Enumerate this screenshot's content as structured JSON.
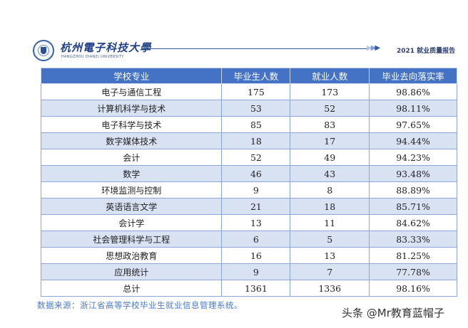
{
  "header": {
    "university_name": "杭州電子科技大學",
    "university_name_en": "HANGZHOU DIANZI UNIVERSITY",
    "logo_icon": "university-seal-icon",
    "chevron_icon": "triple-chevron-right-icon",
    "report_title": "2021 就业质量报告"
  },
  "table": {
    "columns": [
      "学校专业",
      "毕业生人数",
      "就业人数",
      "毕业去向落实率"
    ],
    "rows": [
      {
        "major": "电子与通信工程",
        "graduates": "175",
        "employed": "173",
        "rate": "98.86%"
      },
      {
        "major": "计算机科学与技术",
        "graduates": "53",
        "employed": "52",
        "rate": "98.11%"
      },
      {
        "major": "电子科学与技术",
        "graduates": "85",
        "employed": "83",
        "rate": "97.65%"
      },
      {
        "major": "数字媒体技术",
        "graduates": "18",
        "employed": "17",
        "rate": "94.44%"
      },
      {
        "major": "会计",
        "graduates": "52",
        "employed": "49",
        "rate": "94.23%"
      },
      {
        "major": "数学",
        "graduates": "46",
        "employed": "43",
        "rate": "93.48%"
      },
      {
        "major": "环境监测与控制",
        "graduates": "9",
        "employed": "8",
        "rate": "88.89%"
      },
      {
        "major": "英语语言文学",
        "graduates": "21",
        "employed": "18",
        "rate": "85.71%"
      },
      {
        "major": "会计学",
        "graduates": "13",
        "employed": "11",
        "rate": "84.62%"
      },
      {
        "major": "社会管理科学与工程",
        "graduates": "6",
        "employed": "5",
        "rate": "83.33%"
      },
      {
        "major": "思想政治教育",
        "graduates": "16",
        "employed": "13",
        "rate": "81.25%"
      },
      {
        "major": "应用统计",
        "graduates": "9",
        "employed": "7",
        "rate": "77.78%"
      }
    ],
    "total": {
      "major": "总计",
      "graduates": "1361",
      "employed": "1336",
      "rate": "98.16%"
    }
  },
  "footer": {
    "source": "数据来源：浙江省高等学校毕业生就业信息管理系统。",
    "watermark": "头条 @Mr教育蓝帽子"
  },
  "colors": {
    "header_bg": "#4472c4",
    "alt_row_bg": "#d9e2f3",
    "source_text": "#4a78c8"
  }
}
